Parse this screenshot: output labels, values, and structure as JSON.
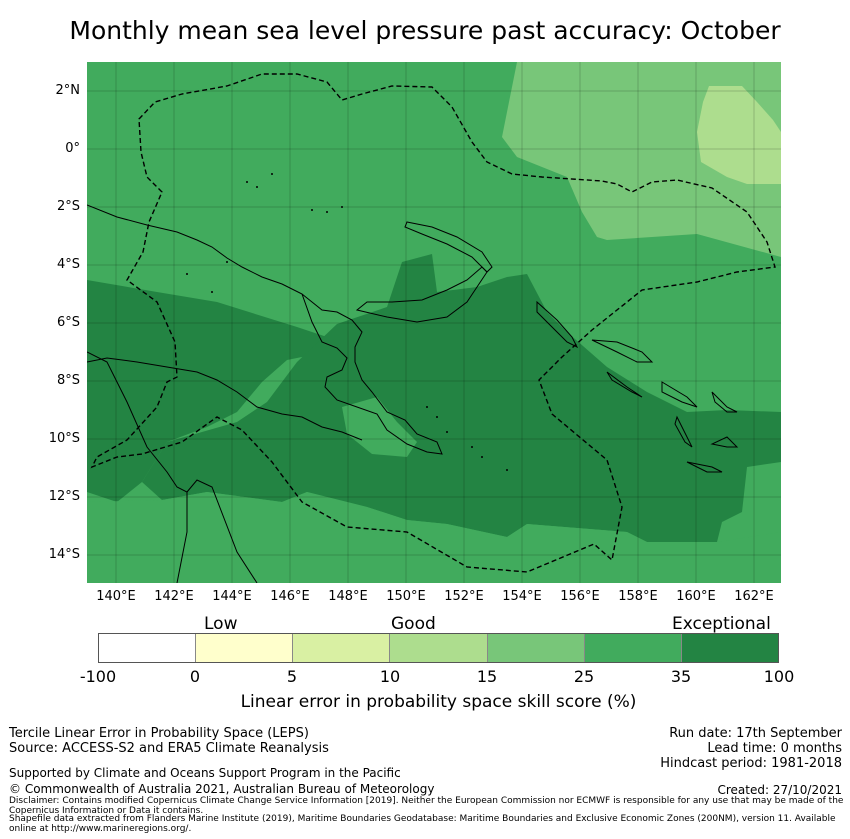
{
  "title": "Monthly mean sea level pressure past accuracy: October",
  "map": {
    "lat_ticks": [
      "2°N",
      "0°",
      "2°S",
      "4°S",
      "6°S",
      "8°S",
      "10°S",
      "12°S",
      "14°S"
    ],
    "lon_ticks": [
      "140°E",
      "142°E",
      "144°E",
      "146°E",
      "148°E",
      "150°E",
      "152°E",
      "154°E",
      "156°E",
      "158°E",
      "160°E",
      "162°E"
    ],
    "colors": {
      "band_15_25": "#78c679",
      "band_25_35": "#41ab5d",
      "band_35_100": "#238443",
      "band_10_15": "#addd8e",
      "land_outline": "#000000",
      "eez_line": "#000000"
    }
  },
  "colorbar": {
    "categories": [
      "Low",
      "Good",
      "Exceptional"
    ],
    "ticks": [
      "-100",
      "0",
      "5",
      "10",
      "15",
      "25",
      "35",
      "100"
    ],
    "colors": [
      "#ffffff",
      "#ffffcc",
      "#d9f0a3",
      "#addd8e",
      "#78c679",
      "#41ab5d",
      "#238443"
    ],
    "label": "Linear error in probability space skill score (%)"
  },
  "footer": {
    "method": "Tercile Linear Error in Probability Space (LEPS)",
    "source": "Source: ACCESS-S2 and ERA5 Climate Reanalysis",
    "run_date": "Run date: 17th September",
    "lead_time": "Lead time: 0 months",
    "hindcast": "Hindcast period: 1981-2018",
    "support": "Supported by Climate and Oceans Support Program in the Pacific",
    "copyright": "© Commonwealth of Australia 2021, Australian Bureau of Meteorology",
    "created": "Created: 27/10/2021",
    "disclaimer": "Disclaimer: Contains modified Copernicus Climate Change Service Information [2019]. Neither the European Commission nor ECMWF is responsible for any use that may be made of the Copernicus Information or Data it contains.",
    "shapefile": "Shapefile data extracted from Flanders Marine Institute (2019), Maritime Boundaries Geodatabase: Maritime Boundaries and Exclusive Economic Zones (200NM), version 11. Available online at http://www.marineregions.org/."
  }
}
